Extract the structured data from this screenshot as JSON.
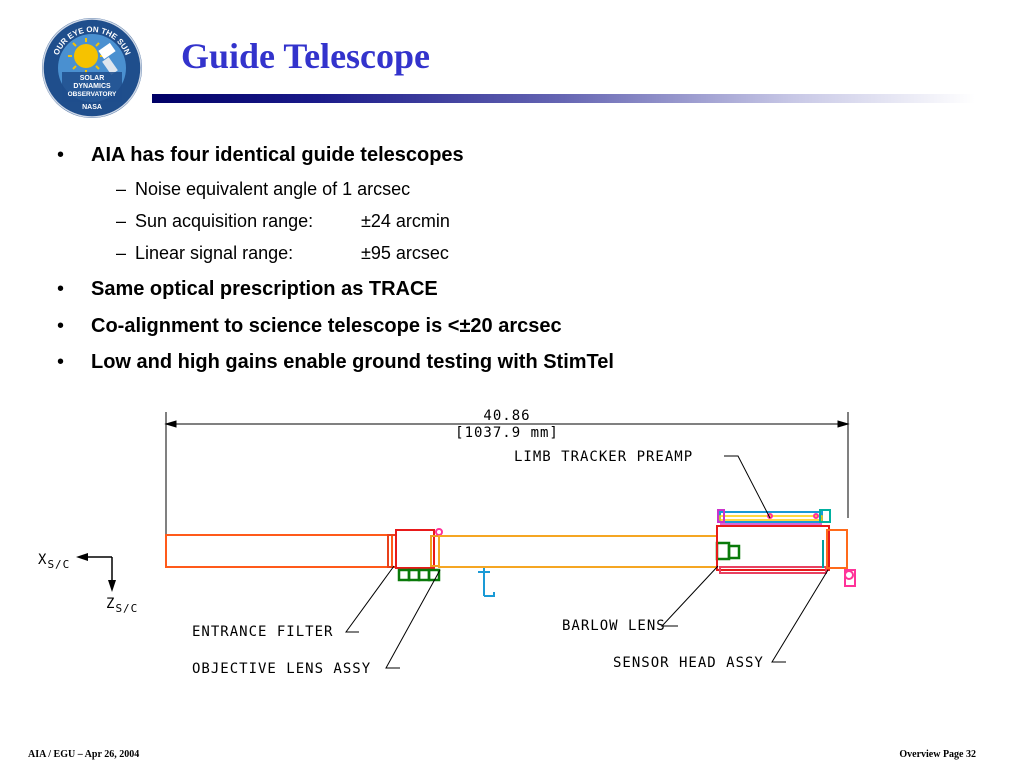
{
  "slide": {
    "title": "Guide Telescope",
    "logo": {
      "ring_text": "OUR EYE ON THE SUN",
      "center_text": [
        "SOLAR",
        "DYNAMICS",
        "OBSERVATORY"
      ],
      "agency": "NASA",
      "colors": {
        "ring": "#1f4e8c",
        "sky": "#4a90d0",
        "sun": "#f6c200"
      }
    },
    "accent_color": "#3333cc"
  },
  "bullets": [
    {
      "text": "AIA has four identical guide telescopes",
      "sub": [
        {
          "label": "Noise equivalent angle of 1 arcsec",
          "value": ""
        },
        {
          "label": "Sun acquisition range:",
          "value": "±24 arcmin"
        },
        {
          "label": "Linear signal range:",
          "value": "±95 arcsec"
        }
      ]
    },
    {
      "text": "Same optical prescription as TRACE",
      "sub": []
    },
    {
      "text": "Co-alignment to science telescope is <±20 arcsec",
      "sub": []
    },
    {
      "text": "Low and high gains enable ground testing with StimTel",
      "sub": []
    }
  ],
  "bullet_glyph": "•",
  "dash_glyph": "–",
  "drawing": {
    "dimension": "40.86",
    "dimension_mm": "[1037.9 mm]",
    "axis_x": "X",
    "axis_z": "Z",
    "axis_sub": "S/C",
    "callouts": {
      "limb_tracker": "LIMB TRACKER PREAMP",
      "entrance_filter": "ENTRANCE FILTER",
      "objective_lens": "OBJECTIVE LENS ASSY",
      "barlow_lens": "BARLOW LENS",
      "sensor_head": "SENSOR HEAD ASSY"
    }
  },
  "footer": {
    "left": "AIA / EGU – Apr 26, 2004",
    "right": "Overview Page 32"
  }
}
